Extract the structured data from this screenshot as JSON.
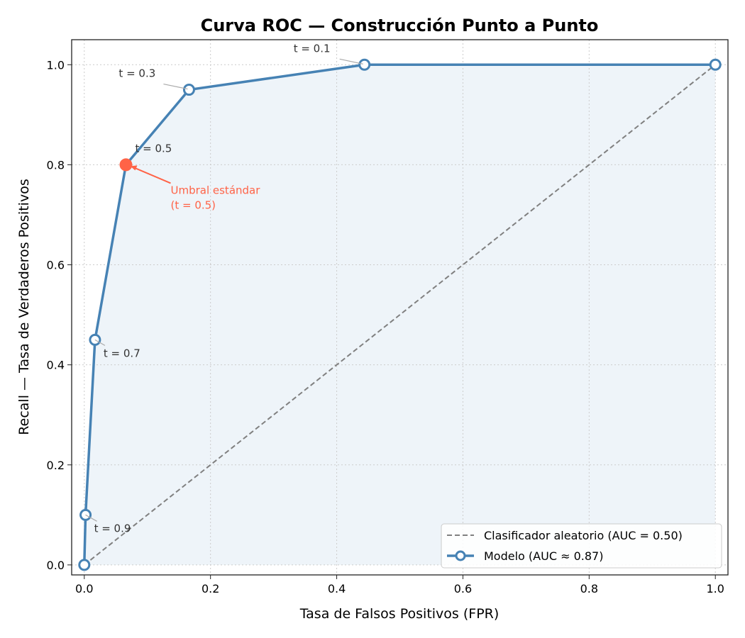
{
  "chart_data": {
    "type": "line",
    "title": "Curva ROC — Construcción Punto a Punto",
    "xlabel": "Tasa de Falsos Positivos (FPR)",
    "ylabel": "Recall — Tasa de Verdaderos Positivos",
    "xlim": [
      -0.02,
      1.02
    ],
    "ylim": [
      -0.02,
      1.05
    ],
    "xticks": [
      0,
      0.2,
      0.4,
      0.6,
      0.8,
      1.0
    ],
    "xtick_labels": [
      "0.0",
      "0.2",
      "0.4",
      "0.6",
      "0.8",
      "1.0"
    ],
    "yticks": [
      0,
      0.2,
      0.4,
      0.6,
      0.8,
      1.0
    ],
    "ytick_labels": [
      "0.0",
      "0.2",
      "0.4",
      "0.6",
      "0.8",
      "1.0"
    ],
    "grid": true,
    "legend_position": "bottom-right",
    "series": [
      {
        "name": "Clasificador aleatorio (AUC = 0.50)",
        "style": "dashed",
        "color": "#808080",
        "x": [
          0,
          1
        ],
        "y": [
          0,
          1
        ]
      },
      {
        "name": "Modelo (AUC ≈ 0.87)",
        "style": "solid-markers",
        "color": "#4682b4",
        "x": [
          0,
          0.002,
          0.017,
          0.066,
          0.166,
          0.444,
          1.0
        ],
        "y": [
          0,
          0.1,
          0.45,
          0.8,
          0.95,
          1.0,
          1.0
        ],
        "fill_color": "#eef4f9"
      }
    ],
    "point_labels": [
      {
        "text": "t = 0.9",
        "x": 0.002,
        "y": 0.1
      },
      {
        "text": "t = 0.7",
        "x": 0.017,
        "y": 0.45
      },
      {
        "text": "t = 0.5",
        "x": 0.066,
        "y": 0.8
      },
      {
        "text": "t = 0.3",
        "x": 0.166,
        "y": 0.95
      },
      {
        "text": "t = 0.1",
        "x": 0.444,
        "y": 1.0
      }
    ],
    "highlight": {
      "x": 0.066,
      "y": 0.8,
      "color": "#ff6347",
      "lines": [
        "Umbral estándar",
        "(t = 0.5)"
      ]
    }
  }
}
